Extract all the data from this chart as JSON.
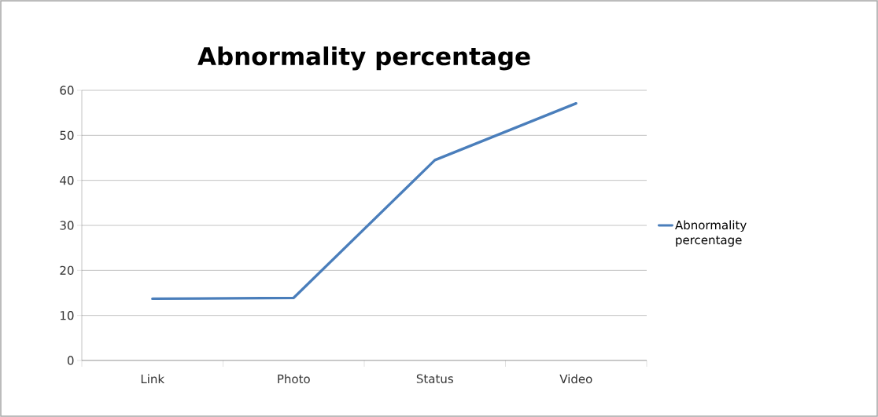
{
  "chart_data": {
    "type": "line",
    "title": "Abnormality percentage",
    "categories": [
      "Link",
      "Photo",
      "Status",
      "Video"
    ],
    "series": [
      {
        "name": "Abnormality percentage",
        "color": "#4a7ebb",
        "values": [
          13.7,
          13.9,
          44.5,
          57.1
        ]
      }
    ],
    "ylim": [
      0,
      60
    ],
    "yticks": [
      0,
      10,
      20,
      30,
      40,
      50,
      60
    ],
    "grid": "y",
    "legend": "right",
    "marker": "none",
    "line_style": "solid"
  }
}
